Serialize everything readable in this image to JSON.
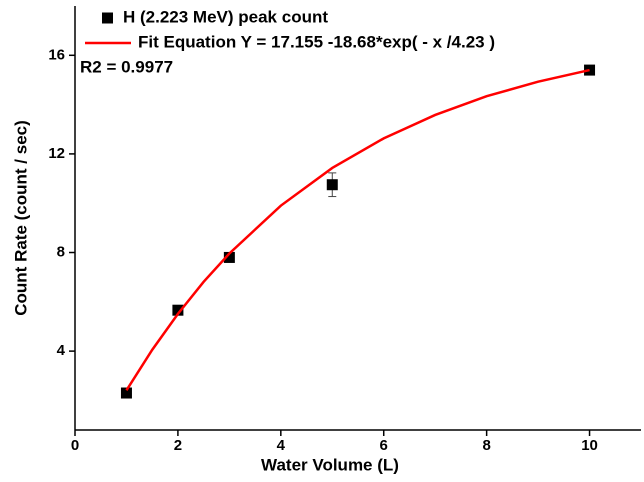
{
  "chart_data": {
    "type": "scatter",
    "xlabel": "Water Volume (L)",
    "ylabel": "Count Rate (count / sec)",
    "xlim": [
      0,
      11
    ],
    "xticks": [
      0,
      2,
      4,
      6,
      8,
      10
    ],
    "ylim": [
      0.8,
      18
    ],
    "yticks": [
      4,
      8,
      12,
      16
    ],
    "legend": "upper left",
    "annotation": "R2 = 0.9977",
    "series": [
      {
        "name": "H (2.223 MeV) peak count",
        "color": "#000000",
        "marker": "square",
        "x": [
          1,
          2,
          3,
          5,
          10
        ],
        "values": [
          2.3,
          5.66,
          7.8,
          10.75,
          15.4
        ],
        "errors": [
          0.05,
          0.05,
          0.05,
          0.48,
          0.05
        ]
      },
      {
        "name": "Fit Equation Y = 17.155 -18.68*exp( - x /4.23 )",
        "color": "#ff0000",
        "marker": "line",
        "x": [
          1,
          1.5,
          2,
          2.5,
          3,
          4,
          5,
          6,
          7,
          8,
          9,
          10
        ],
        "values": [
          2.41,
          4.05,
          5.51,
          6.81,
          7.96,
          9.9,
          11.43,
          12.63,
          13.58,
          14.34,
          14.93,
          15.4
        ]
      }
    ]
  }
}
